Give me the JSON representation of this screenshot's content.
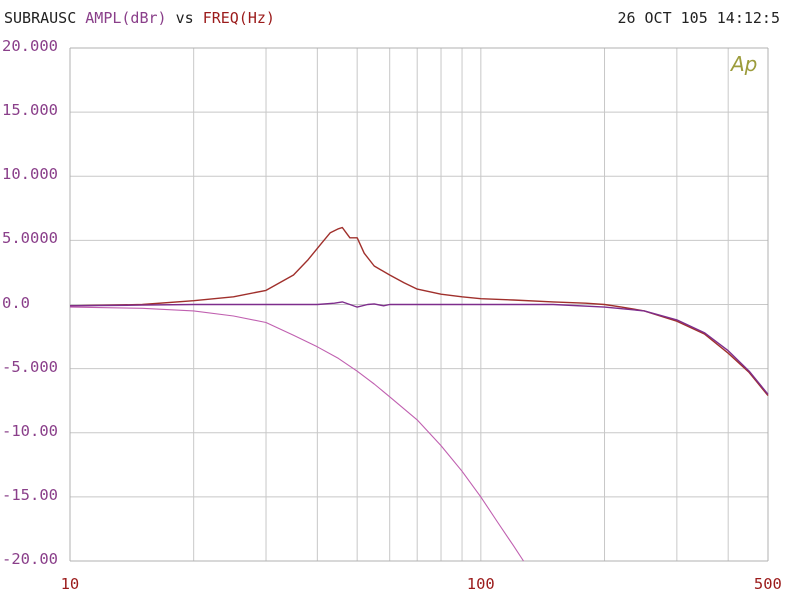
{
  "header": {
    "prefix": "SUBRAUSC",
    "ylabel": "AMPL(dBr)",
    "vs": "vs",
    "xlabel": "FREQ(Hz)",
    "timestamp": "26 OCT 105 14:12:5"
  },
  "logo": "Ap",
  "chart_data": {
    "type": "line",
    "title": "",
    "xlabel": "FREQ(Hz)",
    "ylabel": "AMPL(dBr)",
    "xscale": "log",
    "xlim": [
      10,
      500
    ],
    "ylim": [
      -20,
      20
    ],
    "grid": true,
    "x_tick_labels": [
      "10",
      "100",
      "500"
    ],
    "y_tick_labels": [
      "20.000",
      "15.000",
      "10.000",
      "5.0000",
      "0.0",
      "-5.000",
      "-10.00",
      "-15.00",
      "-20.00"
    ],
    "y_tick_values": [
      20,
      15,
      10,
      5,
      0,
      -5,
      -10,
      -15,
      -20
    ],
    "colors": {
      "red": "#a0302c",
      "purple": "#7e2d8c",
      "magenta": "#c060b0",
      "grid": "#c8c8c8"
    },
    "series": [
      {
        "color": "red",
        "points": [
          [
            10,
            -0.1
          ],
          [
            15,
            0.0
          ],
          [
            20,
            0.3
          ],
          [
            25,
            0.6
          ],
          [
            30,
            1.1
          ],
          [
            35,
            2.3
          ],
          [
            38,
            3.5
          ],
          [
            41,
            4.8
          ],
          [
            43,
            5.6
          ],
          [
            45,
            5.9
          ],
          [
            46,
            6.0
          ],
          [
            47,
            5.6
          ],
          [
            48,
            5.2
          ],
          [
            50,
            5.2
          ],
          [
            52,
            4.0
          ],
          [
            55,
            3.0
          ],
          [
            60,
            2.3
          ],
          [
            65,
            1.7
          ],
          [
            70,
            1.2
          ],
          [
            80,
            0.8
          ],
          [
            90,
            0.6
          ],
          [
            100,
            0.45
          ],
          [
            120,
            0.35
          ],
          [
            150,
            0.2
          ],
          [
            180,
            0.1
          ],
          [
            200,
            0.0
          ],
          [
            220,
            -0.2
          ],
          [
            250,
            -0.5
          ],
          [
            280,
            -1.0
          ],
          [
            300,
            -1.3
          ],
          [
            350,
            -2.3
          ],
          [
            400,
            -3.8
          ],
          [
            450,
            -5.3
          ],
          [
            500,
            -7.1
          ]
        ]
      },
      {
        "color": "purple",
        "points": [
          [
            10,
            -0.1
          ],
          [
            15,
            -0.05
          ],
          [
            20,
            0.0
          ],
          [
            30,
            0.0
          ],
          [
            40,
            0.0
          ],
          [
            44,
            0.1
          ],
          [
            46,
            0.2
          ],
          [
            48,
            0.0
          ],
          [
            50,
            -0.2
          ],
          [
            53,
            0.0
          ],
          [
            55,
            0.05
          ],
          [
            58,
            -0.1
          ],
          [
            60,
            0.0
          ],
          [
            80,
            0.0
          ],
          [
            100,
            0.0
          ],
          [
            150,
            0.0
          ],
          [
            200,
            -0.2
          ],
          [
            250,
            -0.5
          ],
          [
            300,
            -1.2
          ],
          [
            350,
            -2.2
          ],
          [
            400,
            -3.6
          ],
          [
            450,
            -5.2
          ],
          [
            500,
            -7.0
          ]
        ]
      },
      {
        "color": "magenta",
        "points": [
          [
            10,
            -0.2
          ],
          [
            15,
            -0.3
          ],
          [
            20,
            -0.5
          ],
          [
            25,
            -0.9
          ],
          [
            30,
            -1.4
          ],
          [
            35,
            -2.4
          ],
          [
            40,
            -3.3
          ],
          [
            45,
            -4.2
          ],
          [
            50,
            -5.2
          ],
          [
            55,
            -6.2
          ],
          [
            60,
            -7.2
          ],
          [
            70,
            -9.0
          ],
          [
            80,
            -11.0
          ],
          [
            90,
            -13.0
          ],
          [
            100,
            -15.0
          ],
          [
            110,
            -17.0
          ],
          [
            120,
            -18.8
          ],
          [
            127,
            -20.0
          ]
        ]
      }
    ]
  }
}
